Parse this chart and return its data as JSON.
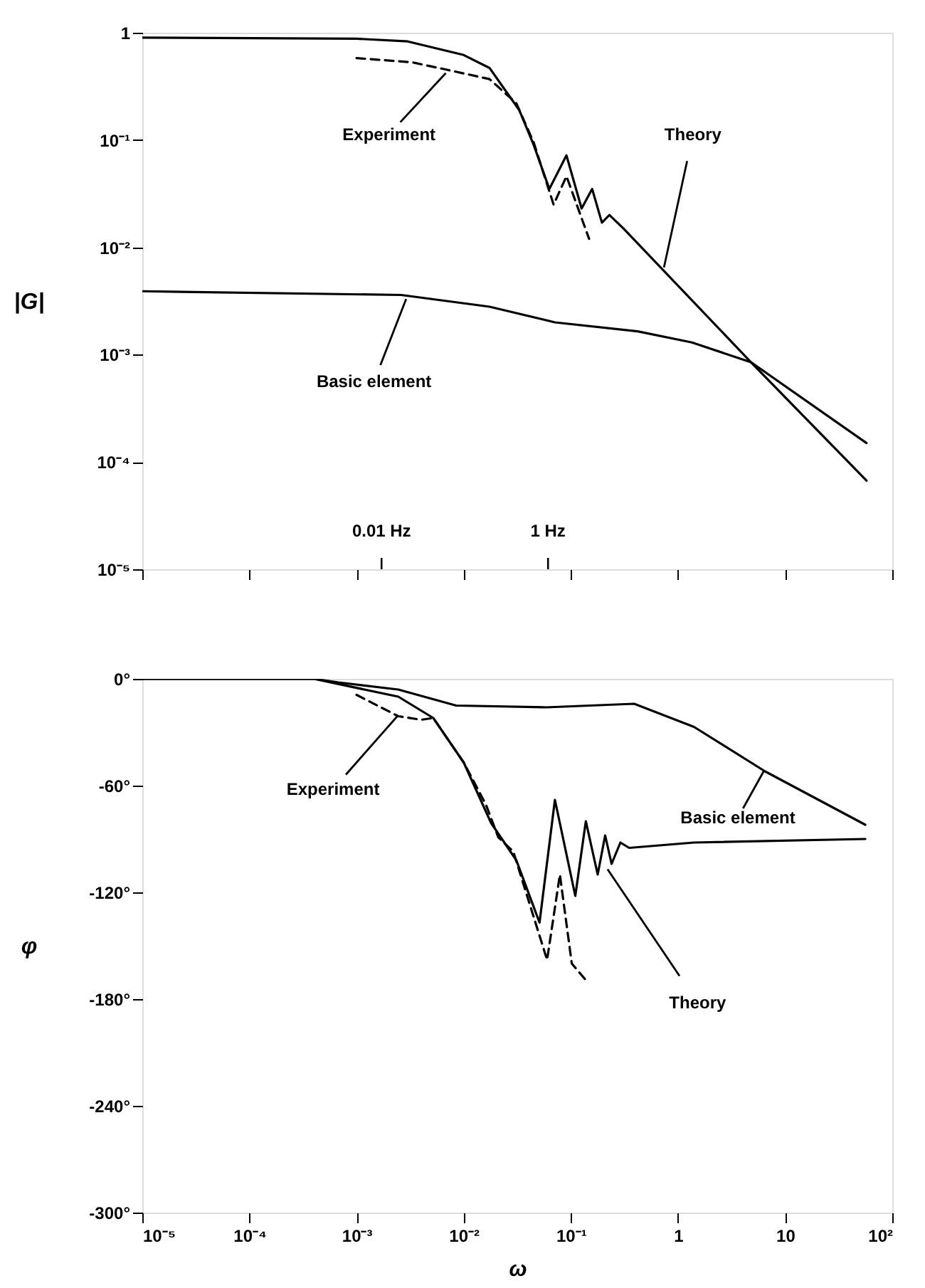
{
  "chart_data": [
    {
      "type": "line",
      "ylabel": "|G|",
      "log": "xy",
      "xlim": [
        1e-05,
        100
      ],
      "ylim": [
        1e-05,
        1
      ],
      "tick_labels": "y",
      "xticks": [
        {
          "value": 1e-05,
          "label": null
        },
        {
          "value": 0.0001,
          "label": null
        },
        {
          "value": 0.001,
          "label": null
        },
        {
          "value": 0.01,
          "label": null
        },
        {
          "value": 0.1,
          "label": null
        },
        {
          "value": 1,
          "label": null
        },
        {
          "value": 10,
          "label": null
        },
        {
          "value": 100,
          "label": null
        }
      ],
      "yticks": [
        {
          "value": 1e-05,
          "label": "10⁻⁵"
        },
        {
          "value": 0.0001,
          "label": "10⁻⁴"
        },
        {
          "value": 0.001,
          "label": "10⁻³"
        },
        {
          "value": 0.01,
          "label": "10⁻²"
        },
        {
          "value": 0.1,
          "label": "10⁻¹"
        },
        1
      ],
      "series": [
        {
          "color": "#000000",
          "line_style": "solid",
          "x": [
            1e-05,
            0.001,
            0.003,
            0.01,
            0.0174,
            0.033,
            0.045,
            0.063,
            0.091,
            0.126,
            0.158,
            0.195,
            0.229,
            0.31,
            4.8,
            57.5
          ],
          "values": [
            0.9,
            0.88,
            0.83,
            0.62,
            0.47,
            0.19,
            0.09,
            0.035,
            0.072,
            0.023,
            0.035,
            0.017,
            0.02,
            0.015,
            0.00085,
            6.7e-05
          ]
        },
        {
          "color": "#000000",
          "line_style": "dashed",
          "x": [
            0.001,
            0.0033,
            0.0071,
            0.0174,
            0.031,
            0.045,
            0.069,
            0.091,
            0.148
          ],
          "values": [
            0.58,
            0.53,
            0.45,
            0.37,
            0.22,
            0.095,
            0.025,
            0.046,
            0.012
          ]
        },
        {
          "color": "#000000",
          "line_style": "solid",
          "x": [
            1e-05,
            0.0026,
            0.0174,
            0.071,
            0.42,
            1.35,
            4.8,
            57.5
          ],
          "values": [
            0.0039,
            0.0036,
            0.0028,
            0.002,
            0.00165,
            0.0013,
            0.00085,
            0.00015
          ]
        }
      ],
      "annotations": [
        {
          "text": "Experiment",
          "x": 0.0068,
          "y": 0.42
        },
        {
          "text": "Theory",
          "x": 0.74,
          "y": 0.0065
        },
        {
          "text": "Basic element",
          "x": 0.0029,
          "y": 0.0033
        },
        "0.01 Hz",
        "1 Hz"
      ]
    },
    {
      "type": "line",
      "xlabel": "ω",
      "ylabel": "φ",
      "log": "x",
      "xlim": [
        1e-05,
        100
      ],
      "ylim": [
        -300,
        0
      ],
      "xticks": [
        {
          "value": 1e-05,
          "label": "10⁻⁵"
        },
        {
          "value": 0.0001,
          "label": "10⁻⁴"
        },
        {
          "value": 0.001,
          "label": "10⁻³"
        },
        {
          "value": 0.01,
          "label": "10⁻²"
        },
        {
          "value": 0.1,
          "label": "10⁻¹"
        },
        1,
        10,
        {
          "value": 100,
          "label": "10²"
        }
      ],
      "yticks": [
        {
          "value": -300,
          "label": "-300°"
        },
        {
          "value": -240,
          "label": "-240°"
        },
        {
          "value": -180,
          "label": "-180°"
        },
        {
          "value": -120,
          "label": "-120°"
        },
        {
          "value": -60,
          "label": "-60°"
        },
        {
          "value": 0,
          "label": "0°"
        }
      ],
      "series": [
        {
          "color": "#000000",
          "line_style": "solid",
          "x": [
            1e-05,
            0.0004,
            0.00245,
            0.0052,
            0.01,
            0.018,
            0.031,
            0.051,
            0.071,
            0.11,
            0.138,
            0.178,
            0.209,
            0.24,
            0.29,
            0.35,
            1.41,
            56
          ],
          "values": [
            0,
            0,
            -10,
            -22,
            -47,
            -81,
            -102,
            -137,
            -68,
            -122,
            -80,
            -110,
            -88,
            -104,
            -92,
            -95,
            -92,
            -90
          ]
        },
        {
          "color": "#000000",
          "line_style": "dashed",
          "x": [
            0.001,
            0.00245,
            0.004,
            0.0052,
            0.01,
            0.0162,
            0.021,
            0.029,
            0.06,
            0.079,
            0.102,
            0.141
          ],
          "values": [
            -9,
            -21,
            -23,
            -22,
            -47,
            -71,
            -89,
            -97,
            -158,
            -110,
            -160,
            -170
          ]
        },
        {
          "color": "#000000",
          "line_style": "solid",
          "x": [
            1e-05,
            0.0004,
            0.00068,
            0.00245,
            0.0085,
            0.059,
            0.39,
            1.41,
            6.5,
            56
          ],
          "values": [
            0,
            0,
            -2,
            -6,
            -15,
            -16,
            -14,
            -27,
            -52,
            -82
          ]
        }
      ],
      "annotations": [
        {
          "text": "Experiment",
          "x": 0.0024,
          "y": -21
        },
        {
          "text": "Basic element",
          "x": 6.3,
          "y": -52
        },
        {
          "text": "Theory",
          "x": 0.22,
          "y": -107
        }
      ]
    }
  ]
}
